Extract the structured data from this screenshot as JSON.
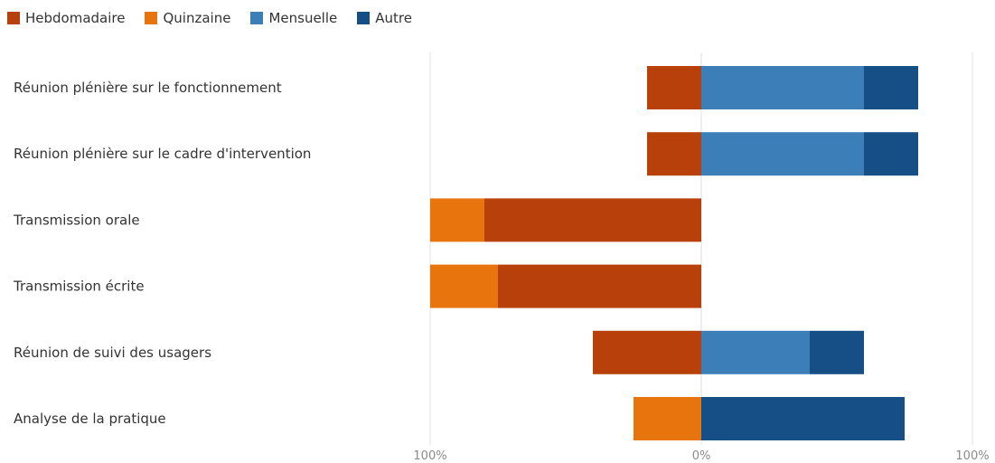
{
  "chart_data": {
    "type": "bar",
    "orientation": "horizontal",
    "stacked": true,
    "diverging": true,
    "categories": [
      "Réunion plénière sur le fonctionnement",
      "Réunion plénière sur le cadre d'intervention",
      "Transmission orale",
      "Transmission écrite",
      "Réunion de suivi des usagers",
      "Analyse de la pratique"
    ],
    "series": [
      {
        "name": "Hebdomadaire",
        "color": "#B8400A",
        "side": "left",
        "values": [
          20,
          20,
          80,
          75,
          40,
          0
        ]
      },
      {
        "name": "Quinzaine",
        "color": "#E8740E",
        "side": "left",
        "values": [
          0,
          0,
          20,
          25,
          0,
          25
        ]
      },
      {
        "name": "Mensuelle",
        "color": "#3C7FB8",
        "side": "right",
        "values": [
          60,
          60,
          0,
          0,
          40,
          0
        ]
      },
      {
        "name": "Autre",
        "color": "#164E86",
        "side": "right",
        "values": [
          20,
          20,
          0,
          0,
          20,
          75
        ]
      }
    ],
    "xlim": [
      -100,
      100
    ],
    "ticks": [
      {
        "value": -100,
        "label": "100%"
      },
      {
        "value": 0,
        "label": "0%"
      },
      {
        "value": 100,
        "label": "100%"
      }
    ],
    "grid": true,
    "legend_position": "top-left",
    "title": "",
    "xlabel": "",
    "ylabel": ""
  }
}
